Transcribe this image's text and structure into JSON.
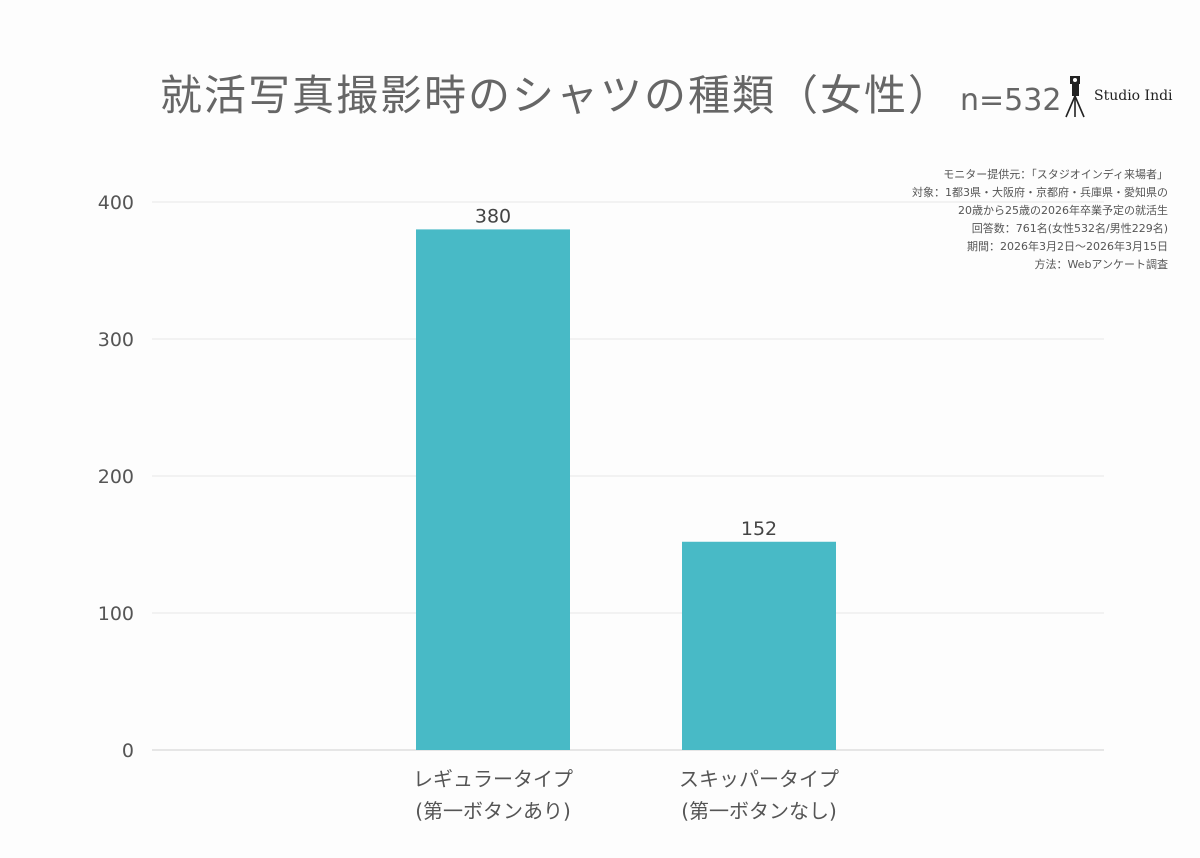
{
  "title": "就活写真撮影時のシャツの種類（女性）",
  "title_n": "n=532",
  "logo_text": "Studio Indi",
  "notes": [
    "モニター提供元：「スタジオインディ来場者」",
    "対象：1都3県・大阪府・京都府・兵庫県・愛知県の",
    "20歳から25歳の2026年卒業予定の就活生",
    "回答数：761名(女性532名/男性229名)",
    "期間：2026年3月2日〜2026年3月15日",
    "方法：Webアンケート調査"
  ],
  "chart_data": {
    "type": "bar",
    "title": "就活写真撮影時のシャツの種類（女性）",
    "categories": [
      [
        "レギュラータイプ",
        "(第一ボタンあり)"
      ],
      [
        "スキッパータイプ",
        "(第一ボタンなし)"
      ]
    ],
    "values": [
      380,
      152
    ],
    "ylim": [
      0,
      400
    ],
    "yticks": [
      0,
      100,
      200,
      300,
      400
    ],
    "grid": true,
    "bar_color": "#48bac6",
    "xlabel": "",
    "ylabel": ""
  }
}
